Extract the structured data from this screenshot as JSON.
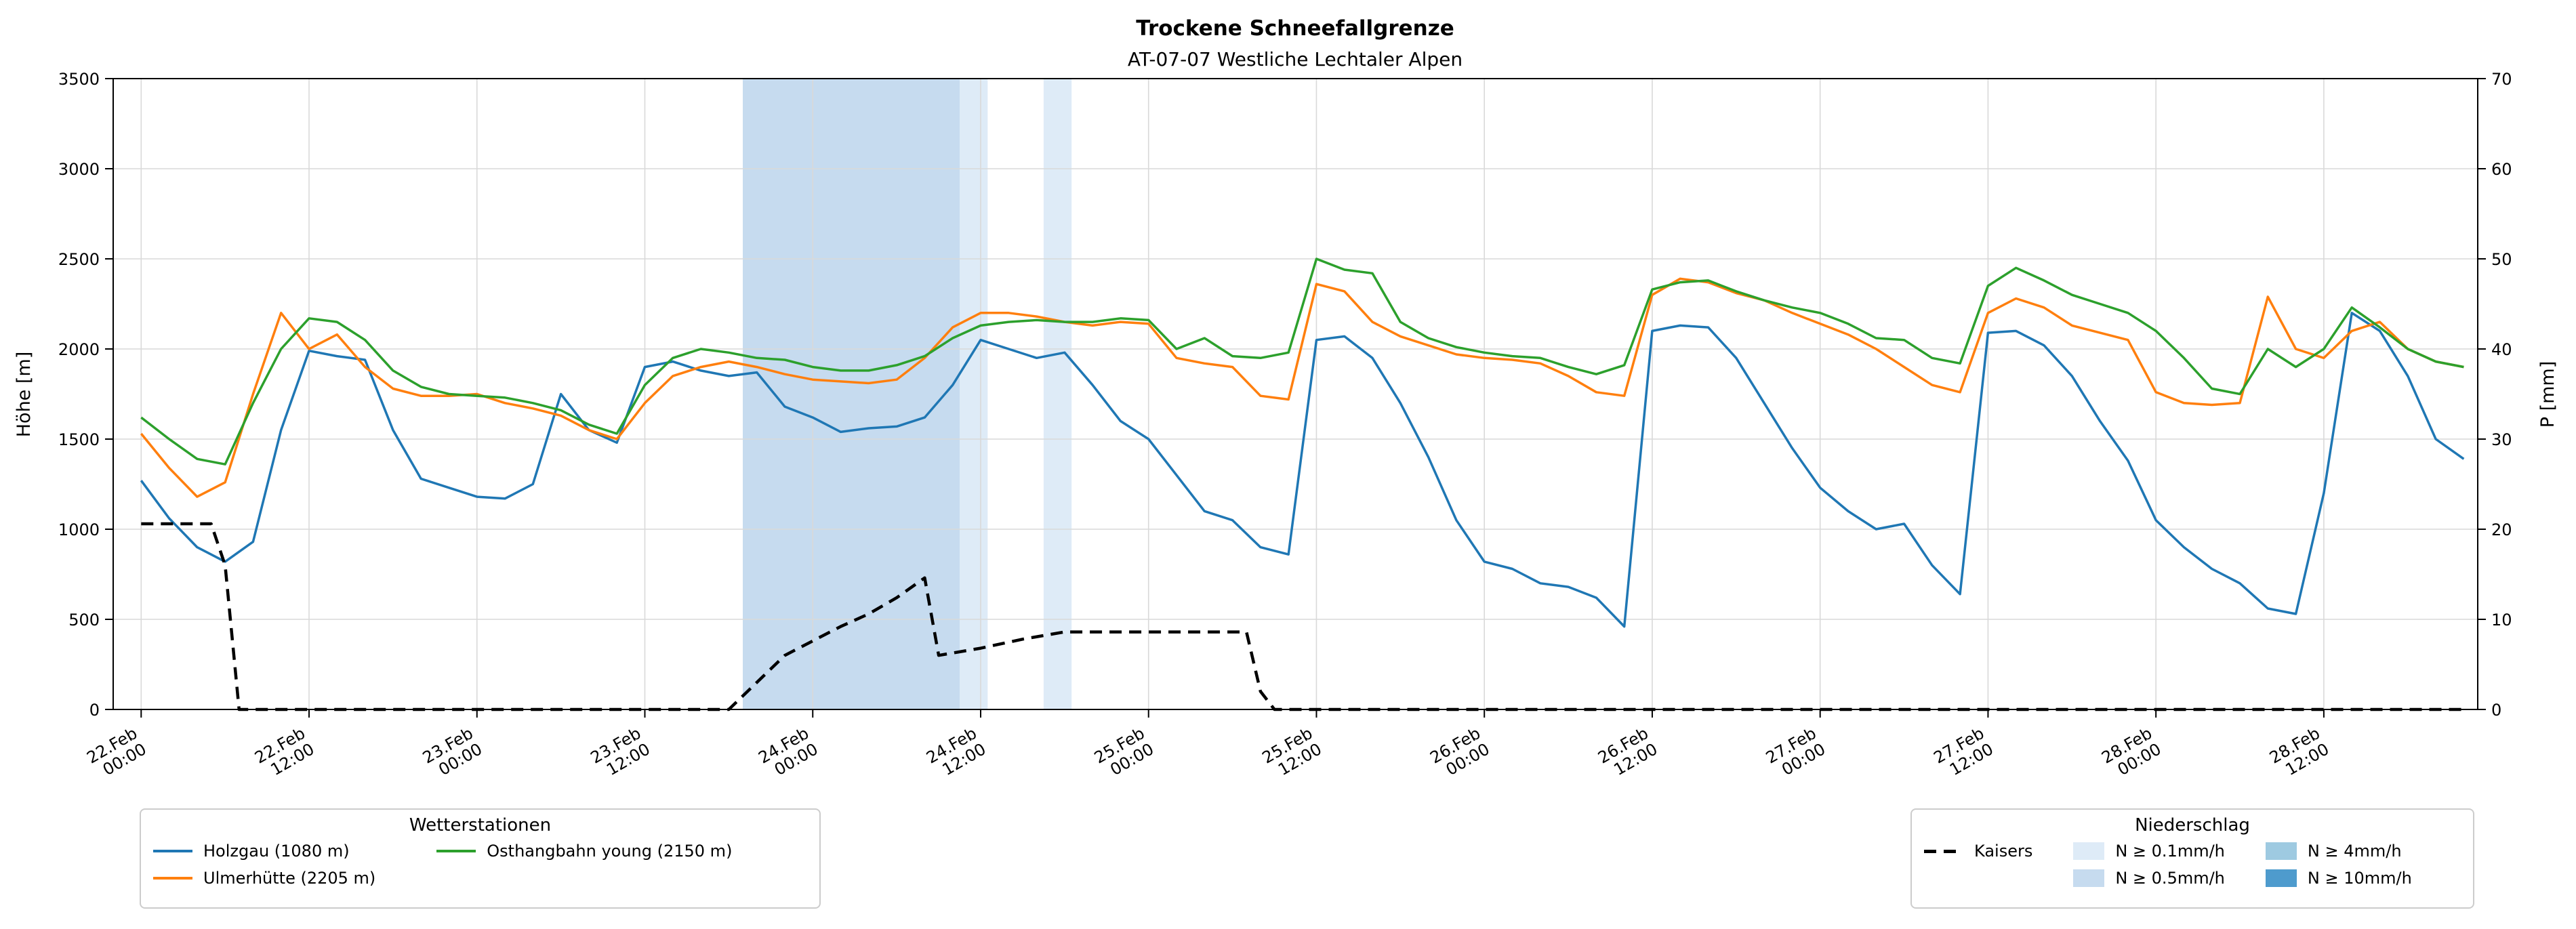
{
  "chart_data": {
    "type": "line",
    "title": "Trockene Schneefallgrenze",
    "subtitle": "AT-07-07 Westliche Lechtaler Alpen",
    "ylabel_left": "Höhe [m]",
    "ylabel_right": "P [mm]",
    "x_unit": "hours since 22.Feb 00:00",
    "xlim": [
      -2,
      167
    ],
    "ylim_left": [
      0,
      3500
    ],
    "ylim_right": [
      0,
      70
    ],
    "grid": true,
    "legend_positions": [
      "lower-left",
      "lower-right"
    ],
    "x_ticks": [
      {
        "t": 0,
        "label": [
          "22.Feb",
          "00:00"
        ]
      },
      {
        "t": 12,
        "label": [
          "22.Feb",
          "12:00"
        ]
      },
      {
        "t": 24,
        "label": [
          "23.Feb",
          "00:00"
        ]
      },
      {
        "t": 36,
        "label": [
          "23.Feb",
          "12:00"
        ]
      },
      {
        "t": 48,
        "label": [
          "24.Feb",
          "00:00"
        ]
      },
      {
        "t": 60,
        "label": [
          "24.Feb",
          "12:00"
        ]
      },
      {
        "t": 72,
        "label": [
          "25.Feb",
          "00:00"
        ]
      },
      {
        "t": 84,
        "label": [
          "25.Feb",
          "12:00"
        ]
      },
      {
        "t": 96,
        "label": [
          "26.Feb",
          "00:00"
        ]
      },
      {
        "t": 108,
        "label": [
          "26.Feb",
          "12:00"
        ]
      },
      {
        "t": 120,
        "label": [
          "27.Feb",
          "00:00"
        ]
      },
      {
        "t": 132,
        "label": [
          "27.Feb",
          "12:00"
        ]
      },
      {
        "t": 144,
        "label": [
          "28.Feb",
          "00:00"
        ]
      },
      {
        "t": 156,
        "label": [
          "28.Feb",
          "12:00"
        ]
      }
    ],
    "y_ticks_left": [
      0,
      500,
      1000,
      1500,
      2000,
      2500,
      3000,
      3500
    ],
    "y_ticks_right": [
      0,
      10,
      20,
      30,
      40,
      50,
      60,
      70
    ],
    "series": [
      {
        "name": "Holzgau (1080 m)",
        "axis": "left",
        "color": "#1f77b4",
        "line": "solid",
        "x_start": 0,
        "x_step": 2,
        "y": [
          1270,
          1060,
          900,
          820,
          930,
          1550,
          1990,
          1960,
          1940,
          1550,
          1280,
          1230,
          1180,
          1170,
          1250,
          1750,
          1550,
          1480,
          1900,
          1930,
          1880,
          1850,
          1870,
          1680,
          1620,
          1540,
          1560,
          1570,
          1620,
          1800,
          2050,
          2000,
          1950,
          1980,
          1800,
          1600,
          1500,
          1300,
          1100,
          1050,
          900,
          860,
          2050,
          2070,
          1950,
          1700,
          1400,
          1050,
          820,
          780,
          700,
          680,
          620,
          460,
          2100,
          2130,
          2120,
          1950,
          1700,
          1450,
          1230,
          1100,
          1000,
          1030,
          800,
          640,
          2090,
          2100,
          2020,
          1850,
          1600,
          1380,
          1050,
          900,
          780,
          700,
          560,
          530,
          1200,
          2200,
          2100,
          1850,
          1500,
          1390
        ]
      },
      {
        "name": "Ulmerhütte (2205 m)",
        "axis": "left",
        "color": "#ff7f0e",
        "line": "solid",
        "x_start": 0,
        "x_step": 2,
        "y": [
          1530,
          1340,
          1180,
          1260,
          1750,
          2200,
          2000,
          2080,
          1900,
          1780,
          1740,
          1740,
          1750,
          1700,
          1670,
          1630,
          1550,
          1500,
          1700,
          1850,
          1900,
          1930,
          1900,
          1860,
          1830,
          1820,
          1810,
          1830,
          1950,
          2120,
          2200,
          2200,
          2180,
          2150,
          2130,
          2150,
          2140,
          1950,
          1920,
          1900,
          1740,
          1720,
          2360,
          2320,
          2150,
          2070,
          2020,
          1970,
          1950,
          1940,
          1920,
          1850,
          1760,
          1740,
          2300,
          2390,
          2370,
          2310,
          2270,
          2200,
          2140,
          2080,
          2000,
          1900,
          1800,
          1760,
          2200,
          2280,
          2230,
          2130,
          2090,
          2050,
          1760,
          1700,
          1690,
          1700,
          2290,
          2000,
          1950,
          2100,
          2150,
          2000,
          1930,
          1900
        ]
      },
      {
        "name": "Osthangbahn young (2150 m)",
        "axis": "left",
        "color": "#2ca02c",
        "line": "solid",
        "x_start": 0,
        "x_step": 2,
        "y": [
          1620,
          1500,
          1390,
          1360,
          1700,
          2000,
          2170,
          2150,
          2050,
          1880,
          1790,
          1750,
          1740,
          1730,
          1700,
          1660,
          1580,
          1530,
          1800,
          1950,
          2000,
          1980,
          1950,
          1940,
          1900,
          1880,
          1880,
          1910,
          1960,
          2060,
          2130,
          2150,
          2160,
          2150,
          2150,
          2170,
          2160,
          2000,
          2060,
          1960,
          1950,
          1980,
          2500,
          2440,
          2420,
          2150,
          2060,
          2010,
          1980,
          1960,
          1950,
          1900,
          1860,
          1910,
          2330,
          2370,
          2380,
          2320,
          2270,
          2230,
          2200,
          2140,
          2060,
          2050,
          1950,
          1920,
          2350,
          2450,
          2380,
          2300,
          2250,
          2200,
          2100,
          1950,
          1780,
          1750,
          2000,
          1900,
          2000,
          2230,
          2120,
          2000,
          1930,
          1900
        ]
      },
      {
        "name": "Kaisers",
        "axis": "left",
        "color": "#000000",
        "line": "dashed",
        "points": [
          [
            0,
            1030
          ],
          [
            5,
            1030
          ],
          [
            6,
            800
          ],
          [
            7,
            0
          ],
          [
            42,
            0
          ],
          [
            44,
            150
          ],
          [
            46,
            300
          ],
          [
            48,
            380
          ],
          [
            50,
            460
          ],
          [
            52,
            530
          ],
          [
            54,
            620
          ],
          [
            56,
            730
          ],
          [
            57,
            300
          ],
          [
            60,
            340
          ],
          [
            63,
            390
          ],
          [
            66,
            430
          ],
          [
            79,
            430
          ],
          [
            80,
            100
          ],
          [
            81,
            0
          ],
          [
            166,
            0
          ]
        ]
      }
    ],
    "precip_bands": [
      {
        "x_start": 43,
        "x_end": 58.5,
        "label": "N ≥ 0.5mm/h",
        "color": "#c6dbef"
      },
      {
        "x_start": 58.5,
        "x_end": 60.5,
        "label": "N ≥ 0.1mm/h",
        "color": "#deebf7"
      },
      {
        "x_start": 64.5,
        "x_end": 66.5,
        "label": "N ≥ 0.1mm/h",
        "color": "#deebf7"
      }
    ]
  },
  "legend_stations": {
    "title": "Wetterstationen",
    "items": [
      {
        "label": "Holzgau (1080 m)",
        "color": "#1f77b4",
        "type": "line"
      },
      {
        "label": "Ulmerhütte (2205 m)",
        "color": "#ff7f0e",
        "type": "line"
      },
      {
        "label": "Osthangbahn young (2150 m)",
        "color": "#2ca02c",
        "type": "line"
      }
    ]
  },
  "legend_precip": {
    "title": "Niederschlag",
    "items": [
      {
        "label": "Kaisers",
        "color": "#000000",
        "type": "dashed-line"
      },
      {
        "label": "N ≥ 0.1mm/h",
        "color": "#deebf7",
        "type": "patch"
      },
      {
        "label": "N ≥ 0.5mm/h",
        "color": "#c6dbef",
        "type": "patch"
      },
      {
        "label": "N ≥ 4mm/h",
        "color": "#9ecae1",
        "type": "patch"
      },
      {
        "label": "N ≥ 10mm/h",
        "color": "#4e9bcd",
        "type": "patch"
      }
    ]
  },
  "colors": {
    "grid": "#d9d9d9",
    "spine": "#000000",
    "background": "#ffffff"
  }
}
